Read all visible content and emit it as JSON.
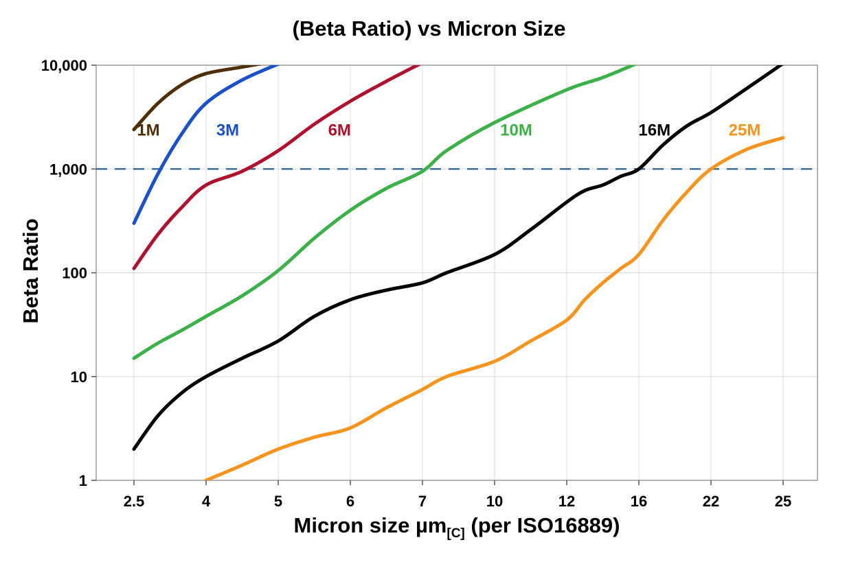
{
  "chart_data": {
    "type": "line",
    "title": "(Beta Ratio) vs Micron Size",
    "ylabel": "Beta Ratio",
    "xlabel_parts": {
      "prefix": "Micron size µm",
      "subscript": "[C]",
      "suffix": " (per ISO16889)"
    },
    "y_scale": "log",
    "ylim": [
      1,
      10000
    ],
    "grid": true,
    "grid_color": "#d8d8d8",
    "frame_color": "#9a9a9a",
    "x_ticks": [
      {
        "value": 2.5,
        "label": "2.5"
      },
      {
        "value": 4,
        "label": "4"
      },
      {
        "value": 5,
        "label": "5"
      },
      {
        "value": 6,
        "label": "6"
      },
      {
        "value": 7,
        "label": "7"
      },
      {
        "value": 10,
        "label": "10"
      },
      {
        "value": 12,
        "label": "12"
      },
      {
        "value": 16,
        "label": "16"
      },
      {
        "value": 22,
        "label": "22"
      },
      {
        "value": 25,
        "label": "25"
      }
    ],
    "y_ticks": [
      {
        "value": 1,
        "label": "1"
      },
      {
        "value": 10,
        "label": "10"
      },
      {
        "value": 100,
        "label": "100"
      },
      {
        "value": 1000,
        "label": "1,000"
      },
      {
        "value": 10000,
        "label": "10,000"
      }
    ],
    "reference_line": {
      "value": 1000,
      "color": "#3c6e9e",
      "style": "dashed"
    },
    "series": [
      {
        "name": "1M",
        "color": "#4e3008",
        "label_pos": {
          "x": 2.8,
          "y": 2100
        },
        "points": [
          [
            2.5,
            2400
          ],
          [
            3,
            4300
          ],
          [
            3.5,
            6500
          ],
          [
            4,
            8300
          ],
          [
            4.5,
            9600
          ],
          [
            4.85,
            10600
          ]
        ]
      },
      {
        "name": "3M",
        "color": "#1a50c8",
        "label_pos": {
          "x": 4.3,
          "y": 2100
        },
        "points": [
          [
            2.5,
            300
          ],
          [
            3,
            900
          ],
          [
            3.5,
            2200
          ],
          [
            4,
            4300
          ],
          [
            4.5,
            7200
          ],
          [
            5.05,
            10600
          ]
        ]
      },
      {
        "name": "6M",
        "color": "#b0122d",
        "label_pos": {
          "x": 5.85,
          "y": 2100
        },
        "points": [
          [
            2.5,
            110
          ],
          [
            3,
            235
          ],
          [
            3.5,
            430
          ],
          [
            4,
            700
          ],
          [
            4.5,
            950
          ],
          [
            5,
            1500
          ],
          [
            5.5,
            2700
          ],
          [
            6,
            4500
          ],
          [
            6.5,
            7000
          ],
          [
            7,
            10600
          ]
        ]
      },
      {
        "name": "10M",
        "color": "#3cb049",
        "label_pos": {
          "x": 10.6,
          "y": 2100
        },
        "points": [
          [
            2.5,
            15
          ],
          [
            3,
            21
          ],
          [
            3.5,
            28
          ],
          [
            4,
            38
          ],
          [
            4.5,
            60
          ],
          [
            5,
            105
          ],
          [
            5.5,
            215
          ],
          [
            6,
            400
          ],
          [
            6.5,
            650
          ],
          [
            7,
            950
          ],
          [
            8,
            1500
          ],
          [
            10,
            2800
          ],
          [
            12,
            5800
          ],
          [
            14,
            7600
          ],
          [
            16,
            10600
          ]
        ]
      },
      {
        "name": "16M",
        "color": "#000000",
        "label_pos": {
          "x": 17.3,
          "y": 2100
        },
        "points": [
          [
            2.5,
            2
          ],
          [
            3,
            4.2
          ],
          [
            3.5,
            7
          ],
          [
            4,
            10
          ],
          [
            4.5,
            15
          ],
          [
            5,
            22
          ],
          [
            5.5,
            38
          ],
          [
            6,
            55
          ],
          [
            6.5,
            68
          ],
          [
            7,
            80
          ],
          [
            8,
            100
          ],
          [
            10,
            150
          ],
          [
            11,
            260
          ],
          [
            12,
            480
          ],
          [
            13,
            620
          ],
          [
            14,
            700
          ],
          [
            15,
            850
          ],
          [
            16,
            1000
          ],
          [
            18,
            1700
          ],
          [
            20,
            2600
          ],
          [
            22,
            3500
          ],
          [
            23.5,
            6000
          ],
          [
            25,
            10400
          ]
        ]
      },
      {
        "name": "25M",
        "color": "#f7941e",
        "label_pos": {
          "x": 23.4,
          "y": 2100
        },
        "points": [
          [
            4,
            1
          ],
          [
            4.5,
            1.4
          ],
          [
            5,
            2
          ],
          [
            5.5,
            2.6
          ],
          [
            6,
            3.2
          ],
          [
            6.5,
            5
          ],
          [
            7,
            7.5
          ],
          [
            8,
            10
          ],
          [
            10,
            14
          ],
          [
            11,
            22
          ],
          [
            12,
            35
          ],
          [
            13,
            55
          ],
          [
            14,
            80
          ],
          [
            15,
            110
          ],
          [
            16,
            150
          ],
          [
            18,
            320
          ],
          [
            20,
            600
          ],
          [
            22,
            1000
          ],
          [
            23.5,
            1550
          ],
          [
            25,
            2000
          ]
        ]
      }
    ]
  }
}
